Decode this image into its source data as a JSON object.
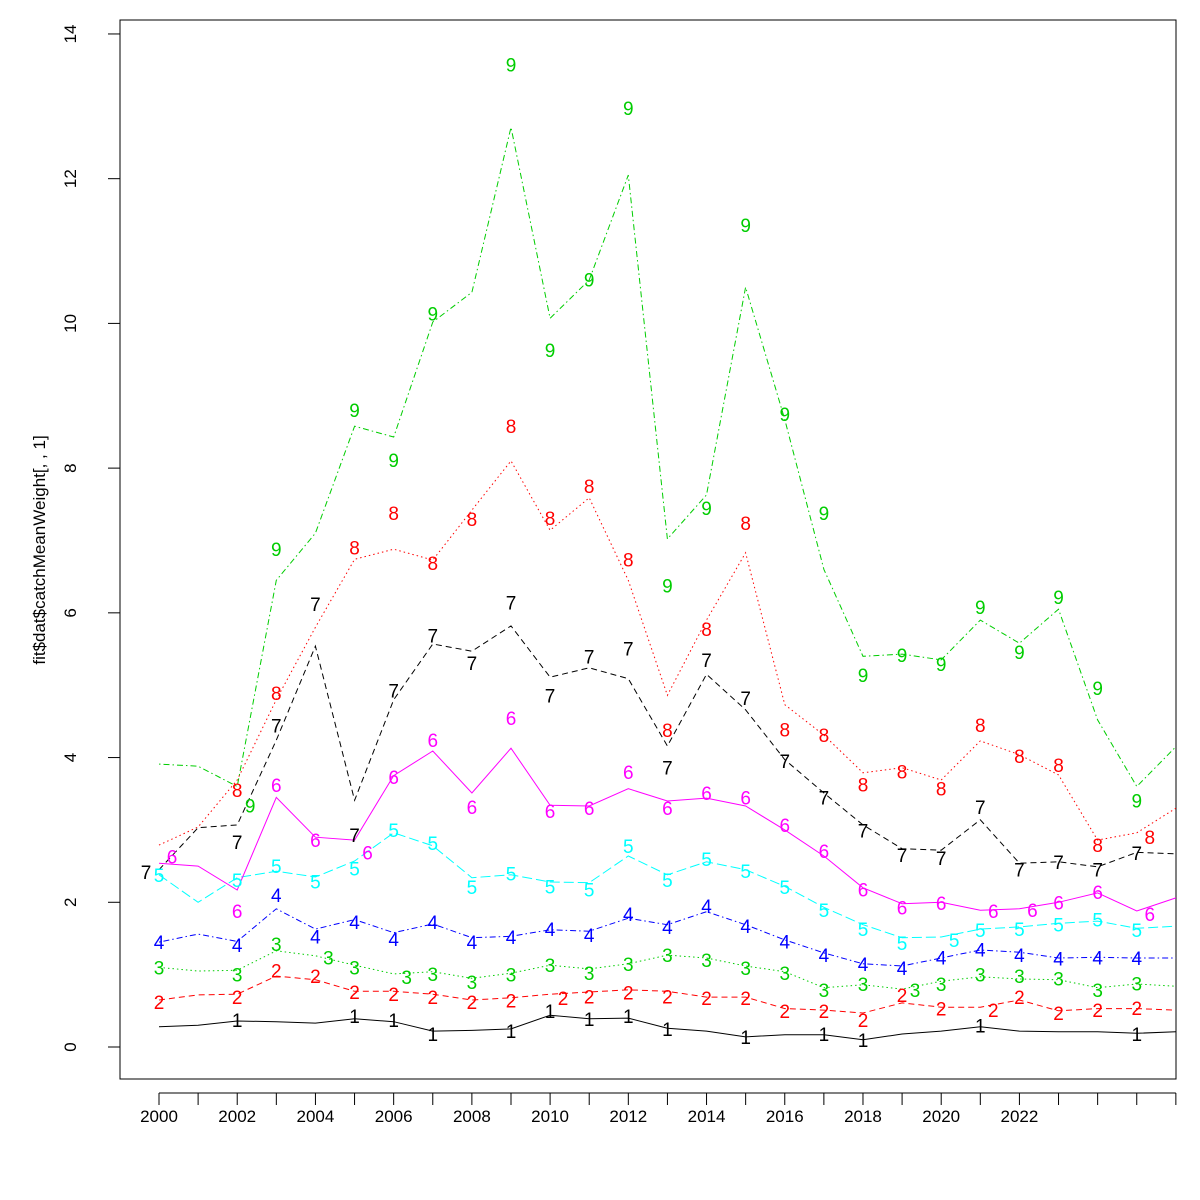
{
  "chart_data": {
    "type": "line",
    "title": "",
    "xlabel": "",
    "ylabel": "fit$dat$catchMeanWeight[, , 1]",
    "xlim": [
      2000,
      2026
    ],
    "ylim": [
      0,
      14
    ],
    "grid": false,
    "x_tick_labels": [
      "2000",
      "2002",
      "2004",
      "2006",
      "2008",
      "2010",
      "2012",
      "2014",
      "2016",
      "2018",
      "2020",
      "2022"
    ],
    "x_ticks_every_year": [
      2000,
      2026
    ],
    "y_tick_labels": [
      "0",
      "2",
      "4",
      "6",
      "8",
      "10",
      "12",
      "14"
    ],
    "line_years": [
      2000,
      2001,
      2002,
      2003,
      2004,
      2005,
      2006,
      2007,
      2008,
      2009,
      2010,
      2011,
      2012,
      2013,
      2014,
      2015,
      2016,
      2017,
      2018,
      2019,
      2020,
      2021,
      2022,
      2023,
      2024,
      2025,
      2026
    ],
    "label_years": [
      2000,
      2001,
      2002,
      2003,
      2004,
      2005,
      2006,
      2007,
      2008,
      2009,
      2010,
      2011,
      2012,
      2013,
      2014,
      2015,
      2016,
      2017,
      2018,
      2019,
      2020,
      2021,
      2022,
      2023,
      2024,
      2025
    ],
    "series": [
      {
        "label": "1",
        "color": "#000000",
        "linetype": "solid",
        "line": [
          0.28,
          0.3,
          0.36,
          0.35,
          0.33,
          0.39,
          0.35,
          0.22,
          0.23,
          0.25,
          0.44,
          0.39,
          0.4,
          0.26,
          0.22,
          0.14,
          0.17,
          0.17,
          0.1,
          0.18,
          0.22,
          0.28,
          0.22,
          0.21,
          0.21,
          0.19,
          0.21
        ],
        "points": [
          null,
          null,
          0.37,
          null,
          null,
          0.43,
          0.37,
          0.18,
          null,
          0.22,
          0.5,
          0.39,
          0.43,
          0.25,
          null,
          0.14,
          null,
          0.18,
          0.1,
          null,
          null,
          0.3,
          null,
          null,
          null,
          0.18
        ]
      },
      {
        "label": "2",
        "color": "#FF0000",
        "linetype": "dashed",
        "line": [
          0.65,
          0.72,
          0.73,
          0.98,
          0.93,
          0.77,
          0.77,
          0.73,
          0.65,
          0.68,
          0.73,
          0.76,
          0.79,
          0.77,
          0.69,
          0.69,
          0.53,
          0.51,
          0.47,
          0.61,
          0.55,
          0.55,
          0.65,
          0.5,
          0.53,
          0.53,
          0.51
        ],
        "points": [
          0.62,
          null,
          0.69,
          1.06,
          0.98,
          0.76,
          0.73,
          0.69,
          0.62,
          0.64,
          0.68,
          0.7,
          0.75,
          0.7,
          0.68,
          0.68,
          0.5,
          0.5,
          0.37,
          0.72,
          0.53,
          0.51,
          0.69,
          0.47,
          0.51,
          0.54
        ]
      },
      {
        "label": "3",
        "color": "#00CD00",
        "linetype": "dotted",
        "line": [
          1.1,
          1.05,
          1.06,
          1.33,
          1.26,
          1.13,
          1.01,
          1.04,
          0.95,
          1.02,
          1.13,
          1.08,
          1.15,
          1.27,
          1.23,
          1.12,
          1.04,
          0.82,
          0.86,
          0.8,
          0.91,
          0.97,
          0.94,
          0.93,
          0.82,
          0.87,
          0.84
        ],
        "points": [
          1.1,
          null,
          1.0,
          1.42,
          1.24,
          1.1,
          0.97,
          1.01,
          0.9,
          1.0,
          1.13,
          1.02,
          1.15,
          1.27,
          1.2,
          1.09,
          1.02,
          0.79,
          0.87,
          0.79,
          0.87,
          1.0,
          0.98,
          0.95,
          0.79,
          0.88
        ]
      },
      {
        "label": "4",
        "color": "#0000FF",
        "linetype": "dotdash",
        "line": [
          1.45,
          1.56,
          1.46,
          1.91,
          1.63,
          1.76,
          1.58,
          1.7,
          1.51,
          1.53,
          1.62,
          1.6,
          1.78,
          1.69,
          1.87,
          1.69,
          1.48,
          1.3,
          1.15,
          1.12,
          1.23,
          1.34,
          1.31,
          1.23,
          1.24,
          1.23,
          1.23
        ],
        "points": [
          1.45,
          null,
          1.41,
          2.1,
          1.53,
          1.73,
          1.49,
          1.73,
          1.45,
          1.52,
          1.63,
          1.55,
          1.84,
          1.66,
          1.95,
          1.67,
          1.46,
          1.27,
          1.15,
          1.09,
          1.24,
          1.35,
          1.27,
          1.22,
          1.24,
          1.23
        ]
      },
      {
        "label": "5",
        "color": "#00FFFF",
        "linetype": "longdash",
        "line": [
          2.38,
          2.0,
          2.34,
          2.43,
          2.35,
          2.57,
          2.96,
          2.78,
          2.34,
          2.38,
          2.28,
          2.27,
          2.64,
          2.38,
          2.56,
          2.45,
          2.22,
          1.93,
          1.69,
          1.51,
          1.52,
          1.63,
          1.66,
          1.71,
          1.74,
          1.64,
          1.67
        ],
        "points": [
          2.38,
          null,
          2.31,
          2.5,
          2.29,
          2.47,
          3.0,
          2.82,
          2.21,
          2.4,
          2.22,
          2.18,
          2.78,
          2.31,
          2.6,
          2.43,
          2.21,
          1.89,
          1.63,
          1.44,
          1.48,
          1.62,
          1.63,
          1.69,
          1.76,
          1.62
        ]
      },
      {
        "label": "6",
        "color": "#FF00FF",
        "linetype": "solid",
        "line": [
          2.54,
          2.5,
          2.17,
          3.45,
          2.9,
          2.86,
          3.75,
          4.09,
          3.51,
          4.13,
          3.34,
          3.33,
          3.57,
          3.4,
          3.44,
          3.33,
          3.0,
          2.64,
          2.2,
          1.98,
          2.0,
          1.89,
          1.91,
          2.0,
          2.13,
          1.88,
          2.06
        ],
        "points": [
          2.63,
          null,
          1.88,
          3.62,
          2.86,
          2.69,
          3.73,
          4.24,
          3.32,
          4.55,
          3.26,
          3.3,
          3.8,
          3.3,
          3.51,
          3.45,
          3.07,
          2.71,
          2.18,
          1.93,
          1.99,
          1.88,
          1.89,
          2.0,
          2.14,
          1.84
        ]
      },
      {
        "label": "7",
        "color": "#000000",
        "linetype": "dashed",
        "line": [
          2.45,
          3.03,
          3.07,
          4.24,
          5.54,
          3.41,
          4.8,
          5.57,
          5.47,
          5.82,
          5.11,
          5.24,
          5.09,
          4.16,
          5.15,
          4.66,
          3.97,
          3.51,
          3.07,
          2.74,
          2.72,
          3.14,
          2.54,
          2.56,
          2.49,
          2.69,
          2.67
        ],
        "points": [
          2.42,
          null,
          2.83,
          4.44,
          6.12,
          2.93,
          4.93,
          5.69,
          5.31,
          6.14,
          4.86,
          5.4,
          5.51,
          3.86,
          5.35,
          4.82,
          3.95,
          3.45,
          2.99,
          2.65,
          2.61,
          3.32,
          2.45,
          2.56,
          2.45,
          2.68
        ]
      },
      {
        "label": "8",
        "color": "#FF0000",
        "linetype": "dotted",
        "line": [
          2.79,
          3.04,
          3.69,
          4.8,
          5.8,
          6.74,
          6.88,
          6.73,
          7.42,
          8.1,
          7.14,
          7.59,
          6.45,
          4.86,
          5.9,
          6.83,
          4.73,
          4.31,
          3.79,
          3.86,
          3.69,
          4.23,
          4.04,
          3.76,
          2.86,
          2.96,
          3.3
        ],
        "points": [
          null,
          null,
          3.55,
          4.89,
          null,
          6.9,
          7.38,
          6.69,
          7.3,
          8.58,
          7.31,
          7.75,
          6.74,
          4.38,
          5.78,
          7.24,
          4.39,
          4.31,
          3.63,
          3.81,
          3.57,
          4.45,
          4.02,
          3.9,
          2.79,
          2.9
        ]
      },
      {
        "label": "9",
        "color": "#00CD00",
        "linetype": "dotdash",
        "line": [
          3.91,
          3.88,
          3.6,
          6.45,
          7.1,
          8.58,
          8.43,
          10.02,
          10.43,
          12.71,
          10.07,
          10.6,
          12.05,
          7.02,
          7.63,
          10.5,
          8.67,
          6.6,
          5.4,
          5.43,
          5.35,
          5.9,
          5.58,
          6.05,
          4.52,
          3.6,
          4.15
        ],
        "points": [
          null,
          null,
          3.34,
          6.88,
          null,
          8.8,
          8.11,
          10.14,
          null,
          13.58,
          9.63,
          10.61,
          12.98,
          6.38,
          7.45,
          11.36,
          8.75,
          7.38,
          5.14,
          5.42,
          5.29,
          6.08,
          5.46,
          6.22,
          4.96,
          3.41
        ]
      }
    ]
  }
}
